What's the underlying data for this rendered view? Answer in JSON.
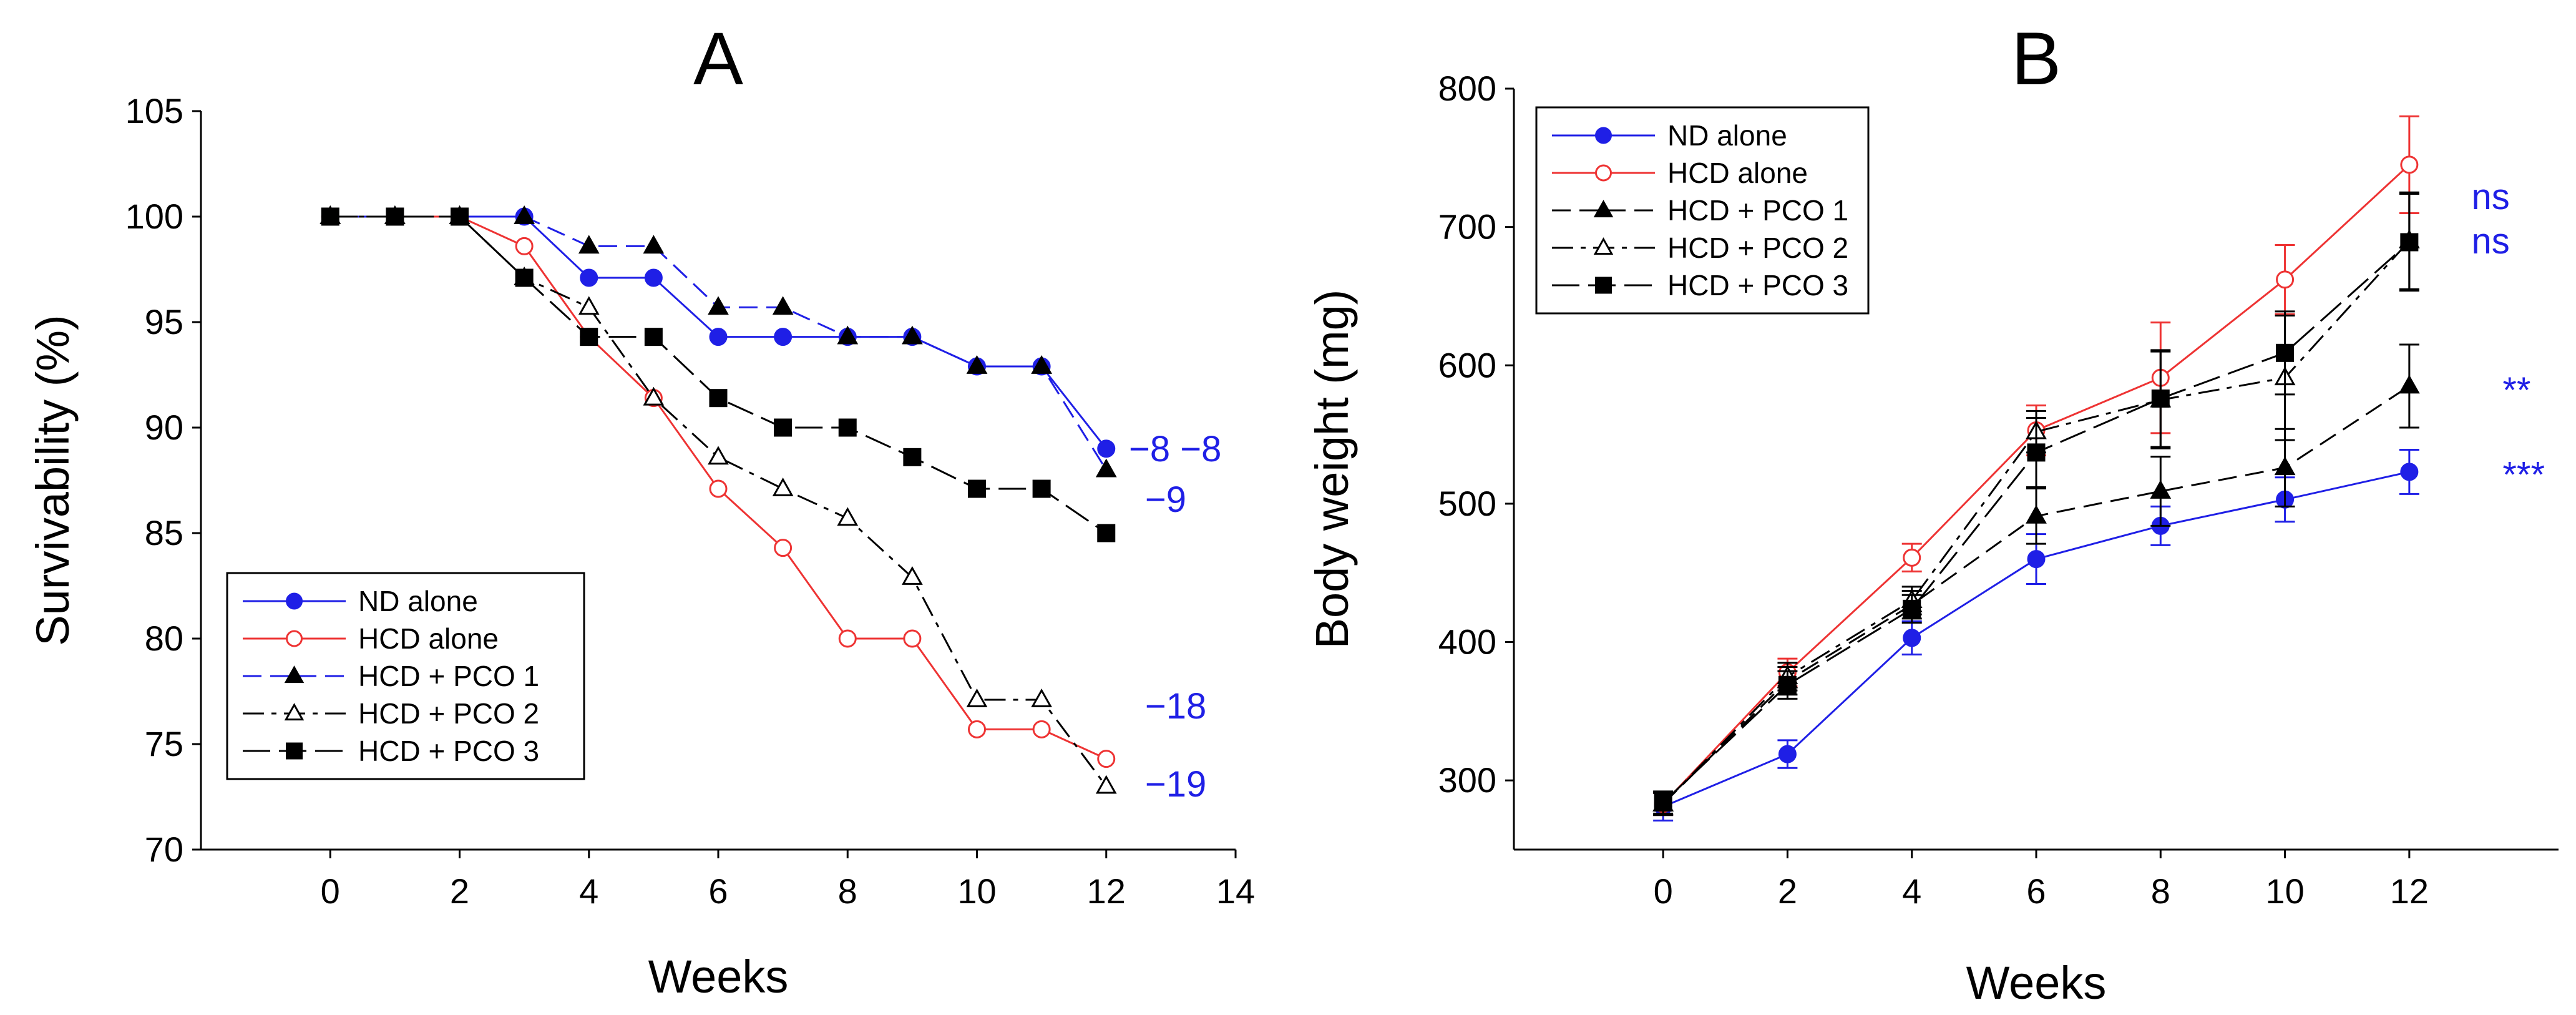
{
  "chart_data": [
    {
      "type": "line",
      "title": "A",
      "xlabel": "Weeks",
      "ylabel": "Survivability (%)",
      "xlim": [
        -2,
        14
      ],
      "ylim": [
        70,
        105
      ],
      "xticks": [
        0,
        2,
        4,
        6,
        8,
        10,
        12,
        14
      ],
      "yticks": [
        70,
        75,
        80,
        85,
        90,
        95,
        100,
        105
      ],
      "legend_position": "bottom-left",
      "x": [
        0,
        1,
        2,
        3,
        4,
        5,
        6,
        7,
        8,
        9,
        10,
        11,
        12
      ],
      "series": [
        {
          "name": "ND alone",
          "color": "#1f1fe6",
          "line": "solid",
          "marker": "circle-filled",
          "values": [
            100,
            100,
            100,
            100,
            97.1,
            97.1,
            94.3,
            94.3,
            94.3,
            94.3,
            92.9,
            92.9,
            89
          ]
        },
        {
          "name": "HCD alone",
          "color": "#ee3333",
          "line": "solid",
          "marker": "circle-open",
          "values": [
            100,
            100,
            100,
            98.6,
            94.3,
            91.4,
            87.1,
            84.3,
            80,
            80,
            75.7,
            75.7,
            74.3
          ]
        },
        {
          "name": "HCD + PCO 1",
          "color": "#000000",
          "line_color": "#1f1fe6",
          "line": "dashed",
          "marker": "triangle-filled",
          "values": [
            100,
            100,
            100,
            100,
            98.6,
            98.6,
            95.7,
            95.7,
            94.3,
            94.3,
            92.9,
            92.9,
            88
          ]
        },
        {
          "name": "HCD + PCO 2",
          "color": "#000000",
          "line": "dashdot",
          "marker": "triangle-open",
          "values": [
            100,
            100,
            100,
            97.1,
            95.7,
            91.4,
            88.6,
            87.1,
            85.7,
            82.9,
            77.1,
            77.1,
            73
          ]
        },
        {
          "name": "HCD + PCO 3",
          "color": "#000000",
          "line": "longdash",
          "marker": "square-filled",
          "values": [
            100,
            100,
            100,
            97.1,
            94.3,
            94.3,
            91.4,
            90,
            90,
            88.6,
            87.1,
            87.1,
            85
          ]
        }
      ],
      "annotations": [
        {
          "text": "−8 −8",
          "x": 12.35,
          "y": 89,
          "color": "#1f1fe6"
        },
        {
          "text": "−9",
          "x": 12.6,
          "y": 86.6,
          "color": "#1f1fe6"
        },
        {
          "text": "−18",
          "x": 12.6,
          "y": 76.8,
          "color": "#1f1fe6"
        },
        {
          "text": "−19",
          "x": 12.6,
          "y": 73.1,
          "color": "#1f1fe6"
        }
      ]
    },
    {
      "type": "line",
      "title": "B",
      "xlabel": "Weeks",
      "ylabel": "Body weight (mg)",
      "xlim": [
        -2.4,
        14.4
      ],
      "ylim": [
        250,
        800
      ],
      "xticks": [
        0,
        2,
        4,
        6,
        8,
        10,
        12
      ],
      "yticks": [
        300,
        400,
        500,
        600,
        700,
        800
      ],
      "legend_position": "top-left",
      "x": [
        0,
        2,
        4,
        6,
        8,
        10,
        12
      ],
      "series": [
        {
          "name": "ND alone",
          "color": "#1f1fe6",
          "line": "solid",
          "marker": "circle-filled",
          "values": [
            281,
            319,
            403,
            460,
            484,
            503,
            523
          ],
          "errors": [
            10,
            10,
            12,
            18,
            14,
            16,
            16
          ]
        },
        {
          "name": "HCD alone",
          "color": "#ee3333",
          "line": "solid",
          "marker": "circle-open",
          "values": [
            283,
            378,
            461,
            553,
            591,
            662,
            745
          ],
          "errors": [
            8,
            10,
            10,
            18,
            40,
            25,
            35
          ]
        },
        {
          "name": "HCD + PCO 1",
          "color": "#000000",
          "line": "dashed",
          "marker": "triangle-filled",
          "values": [
            283,
            372,
            427,
            491,
            509,
            526,
            585
          ],
          "errors": [
            8,
            10,
            10,
            20,
            25,
            28,
            30
          ]
        },
        {
          "name": "HCD + PCO 2",
          "color": "#000000",
          "line": "dashdot",
          "marker": "triangle-open",
          "values": [
            283,
            375,
            430,
            552,
            575,
            591,
            690
          ],
          "errors": [
            8,
            10,
            10,
            15,
            35,
            45,
            35
          ]
        },
        {
          "name": "HCD + PCO 3",
          "color": "#000000",
          "line": "longdash",
          "marker": "square-filled",
          "values": [
            284,
            369,
            424,
            537,
            576,
            609,
            689
          ],
          "errors": [
            8,
            10,
            10,
            25,
            35,
            30,
            35
          ]
        }
      ],
      "annotations": [
        {
          "text": "ns",
          "x": 13.0,
          "y": 722,
          "color": "#1f1fe6"
        },
        {
          "text": "ns",
          "x": 13.0,
          "y": 690,
          "color": "#1f1fe6"
        },
        {
          "text": "**",
          "x": 13.5,
          "y": 582,
          "color": "#1f1fe6"
        },
        {
          "text": "***",
          "x": 13.5,
          "y": 521,
          "color": "#1f1fe6"
        }
      ]
    }
  ]
}
